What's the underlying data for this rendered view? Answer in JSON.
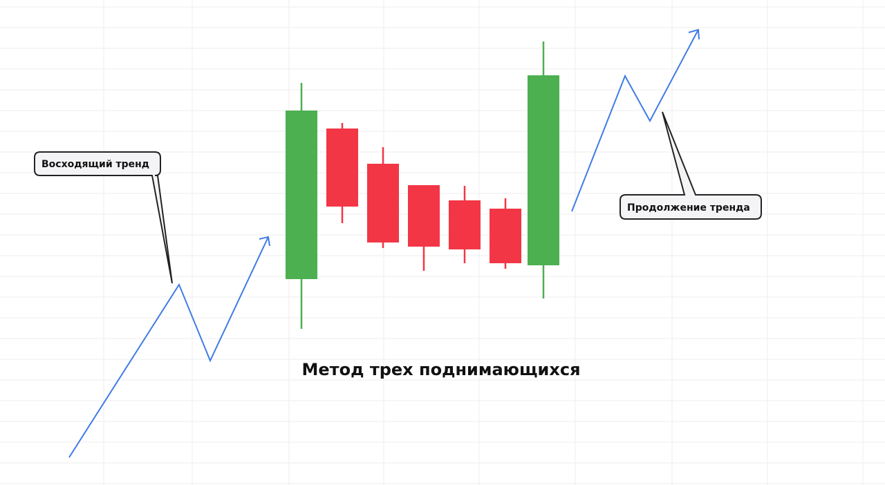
{
  "title": "Метод трех поднимающихся",
  "callouts": {
    "uptrend": "Восходящий тренд",
    "continuation": "Продолжение тренда"
  },
  "candles": [
    "bullish",
    "bearish",
    "bearish",
    "bearish",
    "bearish",
    "bearish",
    "bullish"
  ],
  "colors": {
    "bullish": "#4caf50",
    "bearish": "#f23645",
    "trend_line": "#3f7be6",
    "grid": "#eeeeee",
    "callout_bg": "#f4f4f6",
    "callout_border": "#222222"
  }
}
